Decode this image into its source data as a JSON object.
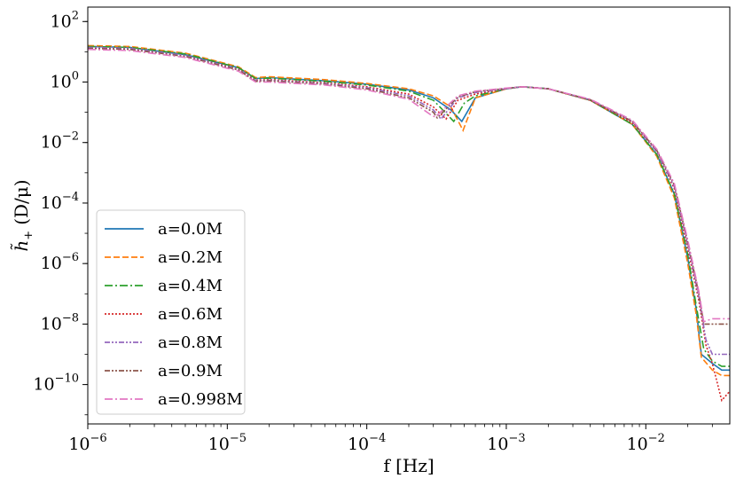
{
  "chart_data": {
    "type": "line",
    "title": "",
    "xlabel": "f [Hz]",
    "ylabel_main": "h̃",
    "ylabel_sub": "+",
    "ylabel_units": "(D/μ)",
    "xscale": "log",
    "yscale": "log",
    "xlim": [
      1e-06,
      0.04
    ],
    "ylim": [
      5e-12,
      300
    ],
    "grid": false,
    "legend_position": "lower-left",
    "x_ticks": [
      {
        "value": 1e-06,
        "base": "10",
        "exp": "−6"
      },
      {
        "value": 1e-05,
        "base": "10",
        "exp": "−5"
      },
      {
        "value": 0.0001,
        "base": "10",
        "exp": "−4"
      },
      {
        "value": 0.001,
        "base": "10",
        "exp": "−3"
      },
      {
        "value": 0.01,
        "base": "10",
        "exp": "−2"
      }
    ],
    "y_ticks": [
      {
        "value": 100,
        "base": "10",
        "exp": "2"
      },
      {
        "value": 1,
        "base": "10",
        "exp": "0"
      },
      {
        "value": 0.01,
        "base": "10",
        "exp": "−2"
      },
      {
        "value": 0.0001,
        "base": "10",
        "exp": "−4"
      },
      {
        "value": 1e-06,
        "base": "10",
        "exp": "−6"
      },
      {
        "value": 1e-08,
        "base": "10",
        "exp": "−8"
      },
      {
        "value": 1e-10,
        "base": "10",
        "exp": "−10"
      }
    ],
    "series": [
      {
        "name": "a=0.0M",
        "color": "#1f77b4",
        "dash": "solid",
        "x": [
          1e-06,
          2e-06,
          5e-06,
          1.2e-05,
          1.6e-05,
          2e-05,
          5e-05,
          0.0001,
          0.0002,
          0.0003,
          0.0004,
          0.00048,
          0.0006,
          0.001,
          0.0013,
          0.002,
          0.004,
          0.008,
          0.012,
          0.016,
          0.02,
          0.023,
          0.025,
          0.03,
          0.035,
          0.04
        ],
        "y": [
          15,
          14,
          8,
          3,
          1.3,
          1.4,
          1.1,
          0.85,
          0.55,
          0.3,
          0.12,
          0.05,
          0.3,
          0.6,
          0.7,
          0.6,
          0.25,
          0.04,
          0.004,
          0.0002,
          1.5e-06,
          3e-08,
          1e-09,
          5e-10,
          3e-10,
          3e-10
        ]
      },
      {
        "name": "a=0.2M",
        "color": "#ff7f0e",
        "dash": "7 3",
        "x": [
          1e-06,
          2e-06,
          5e-06,
          1.2e-05,
          1.6e-05,
          2e-05,
          5e-05,
          0.0001,
          0.0002,
          0.0003,
          0.0004,
          0.00049,
          0.0006,
          0.001,
          0.0013,
          0.002,
          0.004,
          0.008,
          0.012,
          0.016,
          0.02,
          0.023,
          0.025,
          0.03,
          0.035,
          0.04
        ],
        "y": [
          16,
          15,
          9,
          3.2,
          1.4,
          1.5,
          1.2,
          0.9,
          0.6,
          0.35,
          0.15,
          0.025,
          0.3,
          0.6,
          0.7,
          0.6,
          0.25,
          0.04,
          0.0035,
          0.00015,
          1e-06,
          2e-08,
          8e-10,
          3e-10,
          2e-10,
          2e-10
        ]
      },
      {
        "name": "a=0.4M",
        "color": "#2ca02c",
        "dash": "9 3 2 3",
        "x": [
          1e-06,
          2e-06,
          5e-06,
          1.2e-05,
          1.6e-05,
          2e-05,
          5e-05,
          0.0001,
          0.0002,
          0.0003,
          0.00042,
          0.0005,
          0.0006,
          0.001,
          0.0013,
          0.002,
          0.004,
          0.008,
          0.012,
          0.016,
          0.02,
          0.023,
          0.026,
          0.03,
          0.035,
          0.04
        ],
        "y": [
          15,
          14,
          8.5,
          3,
          1.3,
          1.35,
          1.05,
          0.8,
          0.5,
          0.25,
          0.05,
          0.2,
          0.35,
          0.6,
          0.7,
          0.6,
          0.25,
          0.04,
          0.004,
          0.0002,
          2e-06,
          4e-08,
          1.5e-09,
          6e-10,
          4e-10,
          4e-10
        ]
      },
      {
        "name": "a=0.6M",
        "color": "#d62728",
        "dash": "2 2",
        "x": [
          1e-06,
          2e-06,
          5e-06,
          1.2e-05,
          1.6e-05,
          2e-05,
          5e-05,
          0.0001,
          0.0002,
          0.0003,
          0.00037,
          0.00045,
          0.0006,
          0.001,
          0.0013,
          0.002,
          0.004,
          0.008,
          0.012,
          0.016,
          0.02,
          0.024,
          0.027,
          0.03,
          0.035,
          0.04
        ],
        "y": [
          14,
          13,
          7.5,
          2.7,
          1.15,
          1.2,
          0.95,
          0.7,
          0.4,
          0.15,
          0.06,
          0.25,
          0.4,
          0.6,
          0.7,
          0.6,
          0.25,
          0.045,
          0.005,
          0.0003,
          3e-06,
          6e-08,
          2e-09,
          5e-10,
          3e-11,
          6e-11
        ]
      },
      {
        "name": "a=0.8M",
        "color": "#9467bd",
        "dash": "6 2 2 2 2 2",
        "x": [
          1e-06,
          2e-06,
          5e-06,
          1.2e-05,
          1.6e-05,
          2e-05,
          5e-05,
          0.0001,
          0.0002,
          0.0003,
          0.00034,
          0.00045,
          0.0006,
          0.001,
          0.0013,
          0.002,
          0.004,
          0.008,
          0.012,
          0.016,
          0.02,
          0.024,
          0.027,
          0.03,
          0.035,
          0.04
        ],
        "y": [
          14,
          13,
          7.5,
          2.6,
          1.1,
          1.15,
          0.9,
          0.65,
          0.35,
          0.12,
          0.06,
          0.3,
          0.45,
          0.6,
          0.7,
          0.6,
          0.26,
          0.05,
          0.005,
          0.00035,
          4e-06,
          8e-08,
          3e-09,
          1e-09,
          1e-09,
          1e-09
        ]
      },
      {
        "name": "a=0.9M",
        "color": "#8c564b",
        "dash": "6 2 2 2 2 2",
        "x": [
          1e-06,
          2e-06,
          5e-06,
          1.2e-05,
          1.6e-05,
          2e-05,
          5e-05,
          0.0001,
          0.0002,
          0.0003,
          0.00032,
          0.00045,
          0.0006,
          0.001,
          0.0013,
          0.002,
          0.004,
          0.008,
          0.012,
          0.016,
          0.02,
          0.024,
          0.026,
          0.03,
          0.035,
          0.04
        ],
        "y": [
          13,
          12,
          7,
          2.5,
          1.05,
          1.1,
          0.85,
          0.6,
          0.3,
          0.1,
          0.065,
          0.32,
          0.48,
          0.62,
          0.7,
          0.6,
          0.26,
          0.05,
          0.0055,
          0.0004,
          5e-06,
          1e-07,
          1e-08,
          1e-08,
          1e-08,
          1e-08
        ]
      },
      {
        "name": "a=0.998M",
        "color": "#e377c2",
        "dash": "9 3 2 3",
        "x": [
          1e-06,
          2e-06,
          5e-06,
          1.2e-05,
          1.6e-05,
          2e-05,
          5e-05,
          0.0001,
          0.0002,
          0.00029,
          0.00031,
          0.00045,
          0.0006,
          0.001,
          0.0013,
          0.002,
          0.004,
          0.008,
          0.012,
          0.016,
          0.02,
          0.024,
          0.026,
          0.03,
          0.035,
          0.04
        ],
        "y": [
          12,
          11,
          6.5,
          2.3,
          1.0,
          1.0,
          0.8,
          0.55,
          0.27,
          0.08,
          0.07,
          0.35,
          0.5,
          0.63,
          0.7,
          0.6,
          0.27,
          0.055,
          0.006,
          0.00045,
          6e-06,
          1.2e-07,
          1.2e-08,
          1.5e-08,
          1.5e-08,
          1.5e-08
        ]
      }
    ]
  }
}
